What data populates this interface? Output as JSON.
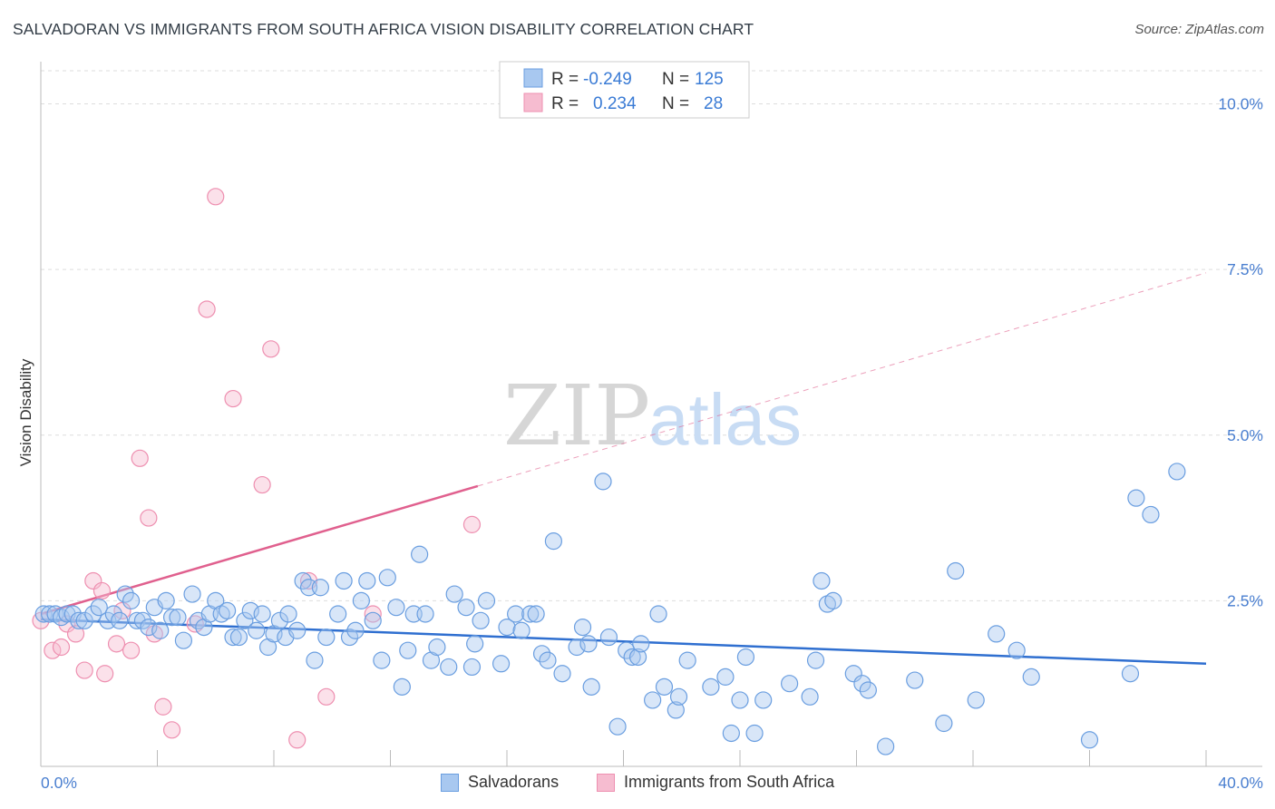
{
  "title": "SALVADORAN VS IMMIGRANTS FROM SOUTH AFRICA VISION DISABILITY CORRELATION CHART",
  "source": "Source: ZipAtlas.com",
  "watermark": {
    "zip": "ZIP",
    "atlas": "atlas"
  },
  "colors": {
    "blue_fill": "#a8c8f0",
    "blue_stroke": "#6a9ee0",
    "blue_line": "#2f6fd0",
    "pink_fill": "#f6bcd0",
    "pink_stroke": "#ee8fb0",
    "pink_line": "#e0608e",
    "tick_text": "#4a7fd0",
    "grid": "#dddddd"
  },
  "legend": {
    "r_label": "R =",
    "n_label": "N =",
    "rows": [
      {
        "series": "Salvadorans",
        "r": "-0.249",
        "n": "125"
      },
      {
        "series": "Immigrants from South Africa",
        "r": "0.234",
        "n": "28"
      }
    ]
  },
  "chart_data": {
    "type": "scatter",
    "title": "SALVADORAN VS IMMIGRANTS FROM SOUTH AFRICA VISION DISABILITY CORRELATION CHART",
    "xlabel": "",
    "ylabel": "Vision Disability",
    "xlim": [
      0,
      40
    ],
    "ylim": [
      0,
      10.5
    ],
    "x_tick_labels": [
      "0.0%",
      "40.0%"
    ],
    "y_ticks": [
      2.5,
      5.0,
      7.5,
      10.0
    ],
    "y_tick_labels": [
      "2.5%",
      "5.0%",
      "7.5%",
      "10.0%"
    ],
    "grid": true,
    "series": [
      {
        "name": "Salvadorans",
        "color": "#a8c8f0",
        "trend": {
          "x": [
            0,
            40
          ],
          "y": [
            2.22,
            1.55
          ]
        },
        "points": [
          [
            0.1,
            2.3
          ],
          [
            0.3,
            2.3
          ],
          [
            0.5,
            2.3
          ],
          [
            0.7,
            2.25
          ],
          [
            0.9,
            2.3
          ],
          [
            1.1,
            2.3
          ],
          [
            1.3,
            2.2
          ],
          [
            1.5,
            2.2
          ],
          [
            1.8,
            2.3
          ],
          [
            2.0,
            2.4
          ],
          [
            2.3,
            2.2
          ],
          [
            2.5,
            2.3
          ],
          [
            2.7,
            2.2
          ],
          [
            2.9,
            2.6
          ],
          [
            3.1,
            2.5
          ],
          [
            3.3,
            2.2
          ],
          [
            3.5,
            2.2
          ],
          [
            3.7,
            2.1
          ],
          [
            3.9,
            2.4
          ],
          [
            4.1,
            2.05
          ],
          [
            4.3,
            2.5
          ],
          [
            4.5,
            2.25
          ],
          [
            4.7,
            2.25
          ],
          [
            4.9,
            1.9
          ],
          [
            5.2,
            2.6
          ],
          [
            5.4,
            2.2
          ],
          [
            5.6,
            2.1
          ],
          [
            5.8,
            2.3
          ],
          [
            6.0,
            2.5
          ],
          [
            6.2,
            2.3
          ],
          [
            6.4,
            2.35
          ],
          [
            6.6,
            1.95
          ],
          [
            6.8,
            1.95
          ],
          [
            7.0,
            2.2
          ],
          [
            7.2,
            2.35
          ],
          [
            7.4,
            2.05
          ],
          [
            7.6,
            2.3
          ],
          [
            7.8,
            1.8
          ],
          [
            8.0,
            2.0
          ],
          [
            8.2,
            2.2
          ],
          [
            8.4,
            1.95
          ],
          [
            8.5,
            2.3
          ],
          [
            8.8,
            2.05
          ],
          [
            9.0,
            2.8
          ],
          [
            9.2,
            2.7
          ],
          [
            9.4,
            1.6
          ],
          [
            9.6,
            2.7
          ],
          [
            9.8,
            1.95
          ],
          [
            10.2,
            2.3
          ],
          [
            10.4,
            2.8
          ],
          [
            10.6,
            1.95
          ],
          [
            10.8,
            2.05
          ],
          [
            11.0,
            2.5
          ],
          [
            11.2,
            2.8
          ],
          [
            11.4,
            2.2
          ],
          [
            11.7,
            1.6
          ],
          [
            11.9,
            2.85
          ],
          [
            12.2,
            2.4
          ],
          [
            12.4,
            1.2
          ],
          [
            12.6,
            1.75
          ],
          [
            12.8,
            2.3
          ],
          [
            13.0,
            3.2
          ],
          [
            13.2,
            2.3
          ],
          [
            13.4,
            1.6
          ],
          [
            13.6,
            1.8
          ],
          [
            14.0,
            1.5
          ],
          [
            14.2,
            2.6
          ],
          [
            14.6,
            2.4
          ],
          [
            14.8,
            1.5
          ],
          [
            14.9,
            1.85
          ],
          [
            15.1,
            2.2
          ],
          [
            15.3,
            2.5
          ],
          [
            15.8,
            1.55
          ],
          [
            16.0,
            2.1
          ],
          [
            16.3,
            2.3
          ],
          [
            16.5,
            2.05
          ],
          [
            16.8,
            2.3
          ],
          [
            17.0,
            2.3
          ],
          [
            17.2,
            1.7
          ],
          [
            17.4,
            1.6
          ],
          [
            17.6,
            3.4
          ],
          [
            17.9,
            1.4
          ],
          [
            18.4,
            1.8
          ],
          [
            18.6,
            2.1
          ],
          [
            18.8,
            1.85
          ],
          [
            18.9,
            1.2
          ],
          [
            19.3,
            4.3
          ],
          [
            19.5,
            1.95
          ],
          [
            19.8,
            0.6
          ],
          [
            20.1,
            1.75
          ],
          [
            20.3,
            1.65
          ],
          [
            20.5,
            1.65
          ],
          [
            20.6,
            1.85
          ],
          [
            21.0,
            1.0
          ],
          [
            21.2,
            2.3
          ],
          [
            21.4,
            1.2
          ],
          [
            21.8,
            0.85
          ],
          [
            21.9,
            1.05
          ],
          [
            22.2,
            1.6
          ],
          [
            23.0,
            1.2
          ],
          [
            23.5,
            1.35
          ],
          [
            23.7,
            0.5
          ],
          [
            24.0,
            1.0
          ],
          [
            24.2,
            1.65
          ],
          [
            24.5,
            0.5
          ],
          [
            24.8,
            1.0
          ],
          [
            25.7,
            1.25
          ],
          [
            26.4,
            1.05
          ],
          [
            26.6,
            1.6
          ],
          [
            26.8,
            2.8
          ],
          [
            27.0,
            2.45
          ],
          [
            27.2,
            2.5
          ],
          [
            27.9,
            1.4
          ],
          [
            28.2,
            1.25
          ],
          [
            28.4,
            1.15
          ],
          [
            29.0,
            0.3
          ],
          [
            30.0,
            1.3
          ],
          [
            31.0,
            0.65
          ],
          [
            31.4,
            2.95
          ],
          [
            32.1,
            1.0
          ],
          [
            32.8,
            2.0
          ],
          [
            33.5,
            1.75
          ],
          [
            34.0,
            1.35
          ],
          [
            36.0,
            0.4
          ],
          [
            37.4,
            1.4
          ],
          [
            37.6,
            4.05
          ],
          [
            38.1,
            3.8
          ],
          [
            39.0,
            4.45
          ]
        ]
      },
      {
        "name": "Immigrants from South Africa",
        "color": "#f6bcd0",
        "trend": {
          "x": [
            0,
            40
          ],
          "y": [
            2.3,
            7.45
          ]
        },
        "trend_solid_until_x": 15.0,
        "points": [
          [
            0.0,
            2.2
          ],
          [
            0.4,
            1.75
          ],
          [
            0.7,
            1.8
          ],
          [
            0.9,
            2.15
          ],
          [
            1.2,
            2.0
          ],
          [
            1.5,
            1.45
          ],
          [
            1.8,
            2.8
          ],
          [
            2.1,
            2.65
          ],
          [
            2.2,
            1.4
          ],
          [
            2.6,
            1.85
          ],
          [
            2.8,
            2.35
          ],
          [
            3.1,
            1.75
          ],
          [
            3.4,
            4.65
          ],
          [
            3.7,
            3.75
          ],
          [
            3.9,
            2.0
          ],
          [
            4.2,
            0.9
          ],
          [
            4.5,
            0.55
          ],
          [
            5.3,
            2.15
          ],
          [
            5.7,
            6.9
          ],
          [
            6.0,
            8.6
          ],
          [
            6.6,
            5.55
          ],
          [
            7.6,
            4.25
          ],
          [
            7.9,
            6.3
          ],
          [
            8.8,
            0.4
          ],
          [
            9.2,
            2.8
          ],
          [
            9.8,
            1.05
          ],
          [
            11.4,
            2.3
          ],
          [
            14.8,
            3.65
          ]
        ]
      }
    ]
  }
}
